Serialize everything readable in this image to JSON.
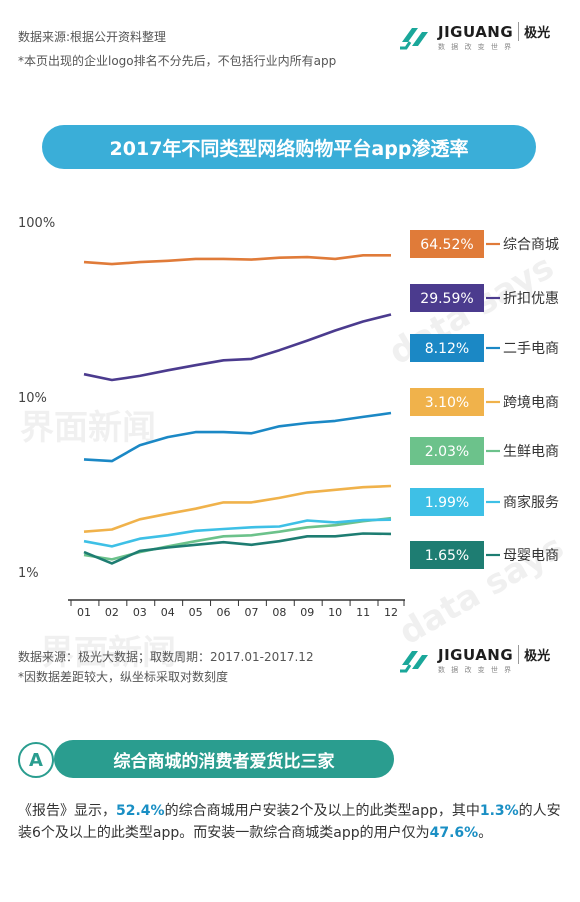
{
  "header": {
    "source": "数据来源:根据公开资料整理",
    "note": "*本页出现的企业logo排名不分先后，不包括行业内所有app"
  },
  "brand": {
    "name": "JIGUANG",
    "cn": "极光",
    "sub": "数 据 改 变 世 界"
  },
  "watermarks": {
    "cn": "界面新闻",
    "en": "data says"
  },
  "title": "2017年不同类型网络购物平台app渗透率",
  "chart_data": {
    "type": "line",
    "x": [
      "01",
      "02",
      "03",
      "04",
      "05",
      "06",
      "07",
      "08",
      "09",
      "10",
      "11",
      "12"
    ],
    "y_ticks": [
      "100%",
      "10%",
      "1%"
    ],
    "yscale": "log",
    "ylim": [
      1,
      100
    ],
    "grid": false,
    "legend_position": "right",
    "series": [
      {
        "name": "综合商城",
        "label": "64.52%",
        "color": "#e07b39",
        "values": [
          59,
          57.5,
          59,
          60,
          61.5,
          61.5,
          61,
          62.5,
          63,
          61.5,
          64.5,
          64.5
        ]
      },
      {
        "name": "折扣优惠",
        "label": "29.59%",
        "color": "#4b3b8e",
        "values": [
          13.5,
          12.5,
          13.2,
          14.2,
          15.2,
          16.2,
          16.5,
          18.5,
          21,
          24,
          27,
          29.6
        ]
      },
      {
        "name": "二手电商",
        "label": "8.12%",
        "color": "#1b88c5",
        "values": [
          4.4,
          4.3,
          5.3,
          5.9,
          6.3,
          6.3,
          6.2,
          6.8,
          7.1,
          7.3,
          7.7,
          8.1
        ]
      },
      {
        "name": "跨境电商",
        "label": "3.10%",
        "color": "#f0b24b",
        "values": [
          1.7,
          1.75,
          2.0,
          2.15,
          2.3,
          2.5,
          2.5,
          2.65,
          2.85,
          2.95,
          3.05,
          3.1
        ]
      },
      {
        "name": "生鲜电商",
        "label": "2.03%",
        "color": "#6cc28b",
        "values": [
          1.25,
          1.18,
          1.3,
          1.4,
          1.5,
          1.6,
          1.62,
          1.7,
          1.8,
          1.85,
          1.95,
          2.03
        ]
      },
      {
        "name": "商家服务",
        "label": "1.99%",
        "color": "#3ec0e6",
        "values": [
          1.5,
          1.4,
          1.55,
          1.62,
          1.72,
          1.76,
          1.8,
          1.82,
          1.97,
          1.92,
          1.98,
          1.99
        ]
      },
      {
        "name": "母婴电商",
        "label": "1.65%",
        "color": "#1e7d72",
        "values": [
          1.3,
          1.12,
          1.32,
          1.38,
          1.43,
          1.48,
          1.43,
          1.5,
          1.6,
          1.6,
          1.66,
          1.65
        ]
      }
    ]
  },
  "footer": {
    "source": "数据来源：极光大数据；取数周期：2017.01-2017.12",
    "note": "*因数据差距较大，纵坐标采取对数刻度"
  },
  "section": {
    "letter": "A",
    "title": "综合商城的消费者爱货比三家",
    "p": [
      "《报告》显示，",
      "52.4%",
      "的综合商城用户安装2个及以上的此类型app，其中",
      "1.3%",
      "的人安装6个及以上的此类型app。而安装一款综合商城类app的用户仅为",
      "47.6%",
      "。"
    ]
  }
}
